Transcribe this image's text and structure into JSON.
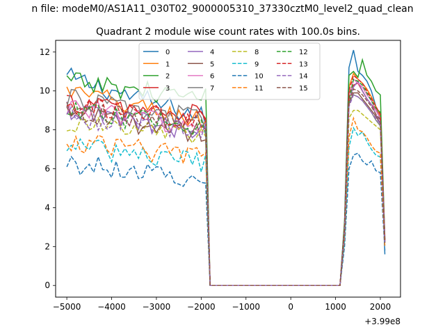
{
  "figure": {
    "suptitle": "n file: modeM0/AS1A11_030T02_9000005310_37330cztM0_level2_quad_clean",
    "title": "Quadrant 2 module wise count rates with 100.0s bins."
  },
  "chart_data": {
    "type": "line",
    "title": "Quadrant 2 module wise count rates with 100.0s bins.",
    "xlabel": "",
    "ylabel": "",
    "x_offset_label": "+3.99e8",
    "xlim": [
      -5250,
      2450
    ],
    "ylim": [
      -0.6,
      12.6
    ],
    "x_ticks": [
      -5000,
      -4000,
      -3000,
      -2000,
      -1000,
      0,
      1000,
      2000
    ],
    "x_tick_labels": [
      "−5000",
      "−4000",
      "−3000",
      "−2000",
      "−1000",
      "0",
      "1000",
      "2000"
    ],
    "y_ticks": [
      0,
      2,
      4,
      6,
      8,
      10,
      12
    ],
    "y_tick_labels": [
      "0",
      "2",
      "4",
      "6",
      "8",
      "10",
      "12"
    ],
    "grid": false,
    "legend_position": "upper-center",
    "legend_ncol": 4,
    "segments": {
      "first_on": [
        -5000,
        -1900
      ],
      "off": [
        -1800,
        1100
      ],
      "second_on": [
        1200,
        2100
      ],
      "bin_step": 100
    },
    "series": [
      {
        "name": "0",
        "color": "#1f77b4",
        "dash": "solid",
        "on1_start": 10.7,
        "on1_end": 8.6,
        "on2": [
          3.2,
          11.2,
          12.1,
          11.0,
          10.8,
          10.5,
          10.0,
          9.2,
          8.5,
          1.6
        ]
      },
      {
        "name": "1",
        "color": "#ff7f0e",
        "dash": "solid",
        "on1_start": 10.0,
        "on1_end": 8.4,
        "on2": [
          3.0,
          10.2,
          10.9,
          10.6,
          10.4,
          10.1,
          9.7,
          9.2,
          8.7,
          2.5
        ]
      },
      {
        "name": "2",
        "color": "#2ca02c",
        "dash": "solid",
        "on1_start": 10.5,
        "on1_end": 9.6,
        "on2": [
          3.3,
          10.8,
          11.0,
          10.7,
          11.6,
          10.8,
          10.5,
          10.0,
          9.8,
          2.4
        ]
      },
      {
        "name": "3",
        "color": "#d62728",
        "dash": "solid",
        "on1_start": 9.4,
        "on1_end": 8.7,
        "on2": [
          3.0,
          9.9,
          10.3,
          10.4,
          10.0,
          9.6,
          9.3,
          9.0,
          8.6,
          2.3
        ]
      },
      {
        "name": "4",
        "color": "#9467bd",
        "dash": "solid",
        "on1_start": 9.0,
        "on1_end": 7.8,
        "on2": [
          2.8,
          9.6,
          10.2,
          10.5,
          10.0,
          9.6,
          9.3,
          8.8,
          8.3,
          2.3
        ]
      },
      {
        "name": "5",
        "color": "#8c564b",
        "dash": "solid",
        "on1_start": 8.9,
        "on1_end": 7.8,
        "on2": [
          2.8,
          9.3,
          9.9,
          9.9,
          9.6,
          9.3,
          9.0,
          8.7,
          8.3,
          2.2
        ]
      },
      {
        "name": "6",
        "color": "#e377c2",
        "dash": "solid",
        "on1_start": 9.3,
        "on1_end": 8.0,
        "on2": [
          2.9,
          9.5,
          10.6,
          10.4,
          10.2,
          9.8,
          9.5,
          9.0,
          8.6,
          2.3
        ]
      },
      {
        "name": "7",
        "color": "#7f7f7f",
        "dash": "solid",
        "on1_start": 9.6,
        "on1_end": 8.5,
        "on2": [
          2.9,
          9.4,
          9.8,
          9.7,
          9.5,
          9.2,
          8.9,
          8.5,
          8.2,
          2.2
        ]
      },
      {
        "name": "8",
        "color": "#bcbd22",
        "dash": "dashed",
        "on1_start": 8.3,
        "on1_end": 7.7,
        "on2": [
          2.7,
          8.6,
          9.0,
          9.0,
          8.8,
          8.6,
          8.4,
          8.2,
          8.0,
          2.2
        ]
      },
      {
        "name": "9",
        "color": "#17becf",
        "dash": "dashed",
        "on1_start": 7.2,
        "on1_end": 6.3,
        "on2": [
          2.3,
          7.1,
          8.1,
          7.7,
          7.9,
          7.4,
          7.0,
          6.7,
          6.6,
          2.0
        ]
      },
      {
        "name": "10",
        "color": "#1f77b4",
        "dash": "dashed",
        "on1_start": 6.3,
        "on1_end": 5.5,
        "on2": [
          2.0,
          6.0,
          6.7,
          6.8,
          6.4,
          6.2,
          6.4,
          5.9,
          5.8,
          1.8
        ]
      },
      {
        "name": "11",
        "color": "#ff7f0e",
        "dash": "dashed",
        "on1_start": 7.4,
        "on1_end": 6.6,
        "on2": [
          2.5,
          7.6,
          8.6,
          8.0,
          7.9,
          7.6,
          7.2,
          6.9,
          6.8,
          2.0
        ]
      },
      {
        "name": "12",
        "color": "#2ca02c",
        "dash": "dashed",
        "on1_start": 8.9,
        "on1_end": 8.2,
        "on2": [
          2.9,
          9.5,
          10.6,
          10.5,
          10.3,
          9.9,
          9.5,
          9.1,
          8.9,
          2.3
        ]
      },
      {
        "name": "13",
        "color": "#d62728",
        "dash": "dashed",
        "on1_start": 9.2,
        "on1_end": 8.4,
        "on2": [
          3.0,
          10.0,
          10.8,
          10.6,
          10.4,
          10.0,
          9.6,
          9.2,
          8.8,
          2.3
        ]
      },
      {
        "name": "14",
        "color": "#9467bd",
        "dash": "dashed",
        "on1_start": 8.7,
        "on1_end": 7.9,
        "on2": [
          2.8,
          9.2,
          9.8,
          9.7,
          9.5,
          9.2,
          8.9,
          8.6,
          8.3,
          2.2
        ]
      },
      {
        "name": "15",
        "color": "#8c564b",
        "dash": "dashed",
        "on1_start": 9.0,
        "on1_end": 8.2,
        "on2": [
          2.9,
          9.4,
          10.1,
          10.0,
          9.8,
          9.5,
          9.2,
          8.8,
          8.5,
          2.2
        ]
      }
    ]
  }
}
